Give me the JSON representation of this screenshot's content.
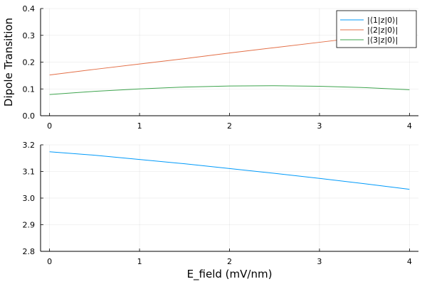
{
  "chart_data": [
    {
      "type": "line",
      "title": "",
      "xlabel": "",
      "ylabel": "Dipole Transition",
      "xlim": [
        -0.1,
        4.1
      ],
      "ylim": [
        0.0,
        0.4
      ],
      "xticks": [
        0,
        1,
        2,
        3,
        4
      ],
      "yticks": [
        0.0,
        0.1,
        0.2,
        0.3,
        0.4
      ],
      "xtick_labels": [
        "0",
        "1",
        "2",
        "3",
        "4"
      ],
      "ytick_labels": [
        "0.0",
        "0.1",
        "0.2",
        "0.3",
        "0.4"
      ],
      "grid": true,
      "legend": "top-right",
      "x": [
        0,
        0.5,
        1,
        1.5,
        2,
        2.5,
        3,
        3.5,
        4
      ],
      "series": [
        {
          "name": "|⟨1|z|0⟩|",
          "color": "#009AFA",
          "values": [
            null,
            null,
            null,
            null,
            null,
            null,
            null,
            null,
            null
          ]
        },
        {
          "name": "|⟨2|z|0⟩|",
          "color": "#E36F47",
          "values": [
            0.152,
            0.173,
            0.193,
            0.213,
            0.234,
            0.254,
            0.274,
            0.294,
            0.315
          ]
        },
        {
          "name": "|⟨3|z|0⟩|",
          "color": "#3EA44E",
          "values": [
            0.079,
            0.091,
            0.1,
            0.107,
            0.111,
            0.112,
            0.11,
            0.105,
            0.097
          ]
        }
      ]
    },
    {
      "type": "line",
      "title": "",
      "xlabel": "E_field (mV/nm)",
      "ylabel": "",
      "xlim": [
        -0.1,
        4.1
      ],
      "ylim": [
        2.8,
        3.2
      ],
      "xticks": [
        0,
        1,
        2,
        3,
        4
      ],
      "yticks": [
        2.8,
        2.9,
        3.0,
        3.1,
        3.2
      ],
      "xtick_labels": [
        "0",
        "1",
        "2",
        "3",
        "4"
      ],
      "ytick_labels": [
        "2.8",
        "2.9",
        "3.0",
        "3.1",
        "3.2"
      ],
      "grid": true,
      "x": [
        0,
        0.5,
        1,
        1.5,
        2,
        2.5,
        3,
        3.5,
        4
      ],
      "series": [
        {
          "name": "|⟨1|z|0⟩|",
          "color": "#009AFA",
          "values": [
            3.174,
            3.161,
            3.145,
            3.129,
            3.111,
            3.093,
            3.074,
            3.054,
            3.033
          ]
        }
      ]
    }
  ]
}
